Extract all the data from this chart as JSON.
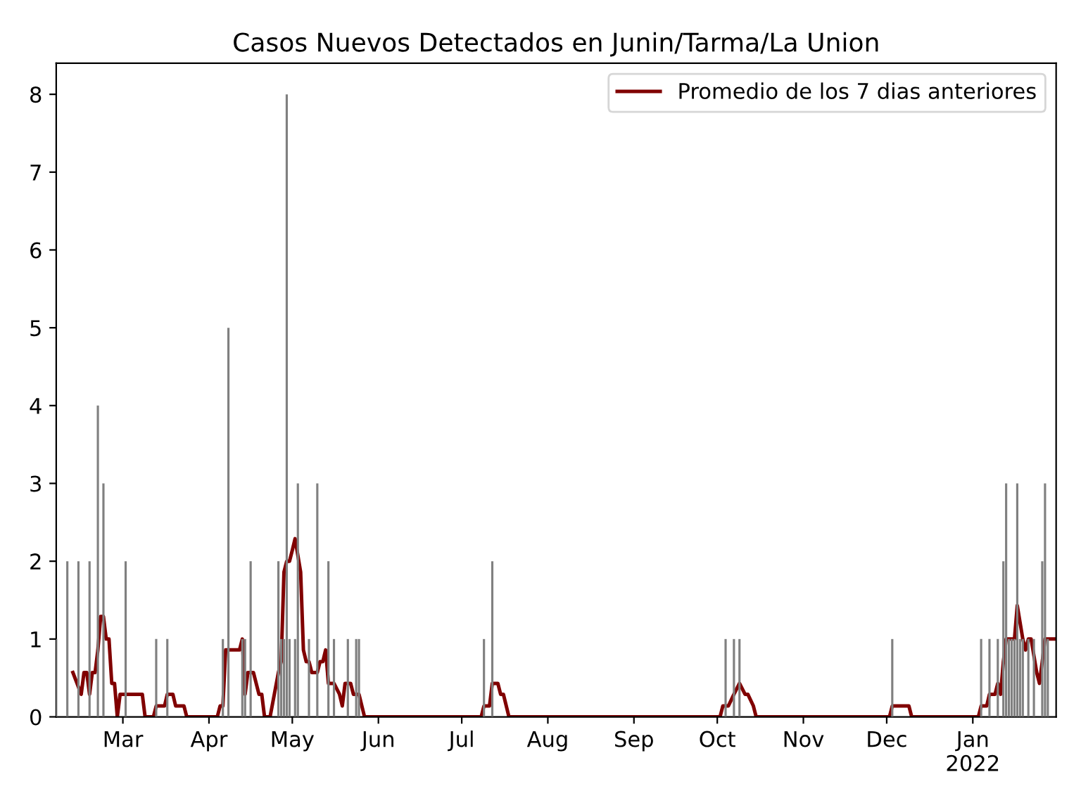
{
  "chart_data": {
    "type": "bar",
    "title": "Casos Nuevos Detectados en Junin/Tarma/La Union",
    "series": [
      {
        "color": "#808080",
        "x": [
          "2021-02-05",
          "2021-02-09",
          "2021-02-13",
          "2021-02-17",
          "2021-02-20",
          "2021-02-22",
          "2021-03-02",
          "2021-03-13",
          "2021-03-17",
          "2021-04-06",
          "2021-04-08",
          "2021-04-13",
          "2021-04-14",
          "2021-04-16",
          "2021-04-26",
          "2021-04-27",
          "2021-04-28",
          "2021-04-29",
          "2021-04-30",
          "2021-05-02",
          "2021-05-03",
          "2021-05-07",
          "2021-05-10",
          "2021-05-14",
          "2021-05-16",
          "2021-05-21",
          "2021-05-24",
          "2021-05-25",
          "2021-07-09",
          "2021-07-12",
          "2021-10-04",
          "2021-10-07",
          "2021-10-09",
          "2021-12-03",
          "2022-01-04",
          "2022-01-07",
          "2022-01-10",
          "2022-01-12",
          "2022-01-13",
          "2022-01-14",
          "2022-01-15",
          "2022-01-16",
          "2022-01-17",
          "2022-01-18",
          "2022-01-19",
          "2022-01-21",
          "2022-01-23",
          "2022-01-26",
          "2022-01-27",
          "2022-01-28"
        ],
        "values": [
          1,
          2,
          2,
          2,
          4,
          3,
          2,
          1,
          1,
          1,
          5,
          1,
          1,
          2,
          2,
          1,
          1,
          8,
          1,
          1,
          3,
          1,
          3,
          2,
          1,
          1,
          1,
          1,
          1,
          2,
          1,
          1,
          1,
          1,
          1,
          1,
          1,
          2,
          3,
          1,
          1,
          1,
          3,
          1,
          1,
          1,
          1,
          2,
          3,
          1
        ]
      },
      {
        "type": "line",
        "name": "Promedio de los 7 dias anteriores",
        "color": "#800000",
        "x": [
          "2021-02-11",
          "2021-02-14",
          "2021-02-15",
          "2021-02-16",
          "2021-02-17",
          "2021-02-18",
          "2021-02-19",
          "2021-02-20",
          "2021-02-21",
          "2021-02-22",
          "2021-02-23",
          "2021-02-24",
          "2021-02-25",
          "2021-02-26",
          "2021-02-27",
          "2021-02-28",
          "2021-03-08",
          "2021-03-09",
          "2021-03-12",
          "2021-03-13",
          "2021-03-16",
          "2021-03-17",
          "2021-03-19",
          "2021-03-20",
          "2021-03-23",
          "2021-03-24",
          "2021-04-04",
          "2021-04-05",
          "2021-04-06",
          "2021-04-07",
          "2021-04-12",
          "2021-04-13",
          "2021-04-14",
          "2021-04-15",
          "2021-04-17",
          "2021-04-19",
          "2021-04-20",
          "2021-04-21",
          "2021-04-23",
          "2021-04-26",
          "2021-04-27",
          "2021-04-28",
          "2021-04-29",
          "2021-04-30",
          "2021-05-01",
          "2021-05-02",
          "2021-05-04",
          "2021-05-05",
          "2021-05-06",
          "2021-05-07",
          "2021-05-08",
          "2021-05-10",
          "2021-05-11",
          "2021-05-12",
          "2021-05-13",
          "2021-05-14",
          "2021-05-16",
          "2021-05-18",
          "2021-05-19",
          "2021-05-20",
          "2021-05-22",
          "2021-05-23",
          "2021-05-25",
          "2021-05-27",
          "2021-07-08",
          "2021-07-09",
          "2021-07-11",
          "2021-07-12",
          "2021-07-14",
          "2021-07-15",
          "2021-07-16",
          "2021-07-18",
          "2021-10-02",
          "2021-10-03",
          "2021-10-05",
          "2021-10-07",
          "2021-10-09",
          "2021-10-11",
          "2021-10-12",
          "2021-10-14",
          "2021-10-15",
          "2021-12-02",
          "2021-12-03",
          "2021-12-09",
          "2021-12-10",
          "2022-01-03",
          "2022-01-04",
          "2022-01-06",
          "2022-01-07",
          "2022-01-09",
          "2022-01-10",
          "2022-01-11",
          "2022-01-12",
          "2022-01-13",
          "2022-01-16",
          "2022-01-17",
          "2022-01-19",
          "2022-01-20",
          "2022-01-21",
          "2022-01-22",
          "2022-01-24",
          "2022-01-25",
          "2022-01-26",
          "2022-01-27",
          "2022-01-31"
        ],
        "values": [
          0.57,
          0.29,
          0.57,
          0.57,
          0.29,
          0.57,
          0.57,
          0.86,
          1.29,
          1.29,
          1.0,
          1.0,
          0.43,
          0.43,
          0,
          0.29,
          0.29,
          0,
          0,
          0.14,
          0.14,
          0.29,
          0.29,
          0.14,
          0.14,
          0,
          0,
          0.14,
          0.14,
          0.86,
          0.86,
          1.0,
          0.29,
          0.57,
          0.57,
          0.29,
          0.29,
          0,
          0,
          0.57,
          0.71,
          1.86,
          2.0,
          2.0,
          2.14,
          2.29,
          1.86,
          0.86,
          0.71,
          0.71,
          0.57,
          0.57,
          0.71,
          0.71,
          0.86,
          0.43,
          0.43,
          0.29,
          0.14,
          0.43,
          0.43,
          0.29,
          0.29,
          0,
          0,
          0.14,
          0.14,
          0.43,
          0.43,
          0.29,
          0.29,
          0,
          0,
          0.14,
          0.14,
          0.29,
          0.43,
          0.29,
          0.29,
          0.14,
          0,
          0,
          0.14,
          0.14,
          0,
          0,
          0.14,
          0.14,
          0.29,
          0.29,
          0.43,
          0.29,
          0.71,
          1.0,
          1.0,
          1.43,
          1.0,
          0.86,
          1.0,
          1.0,
          0.57,
          0.43,
          0.71,
          1.0,
          1.0
        ]
      }
    ],
    "xlim": [
      "2021-02-05",
      "2022-01-31"
    ],
    "xticks": [
      {
        "value": "2021-03-01",
        "label": "Mar"
      },
      {
        "value": "2021-04-01",
        "label": "Apr"
      },
      {
        "value": "2021-05-01",
        "label": "May"
      },
      {
        "value": "2021-06-01",
        "label": "Jun"
      },
      {
        "value": "2021-07-01",
        "label": "Jul"
      },
      {
        "value": "2021-08-01",
        "label": "Aug"
      },
      {
        "value": "2021-09-01",
        "label": "Sep"
      },
      {
        "value": "2021-10-01",
        "label": "Oct"
      },
      {
        "value": "2021-11-01",
        "label": "Nov"
      },
      {
        "value": "2021-12-01",
        "label": "Dec"
      },
      {
        "value": "2022-01-01",
        "label": "Jan\n2022"
      }
    ],
    "ylim": [
      0,
      8.4
    ],
    "yticks": [
      0,
      1,
      2,
      3,
      4,
      5,
      6,
      7,
      8
    ],
    "legend": "top right",
    "grid": false
  }
}
